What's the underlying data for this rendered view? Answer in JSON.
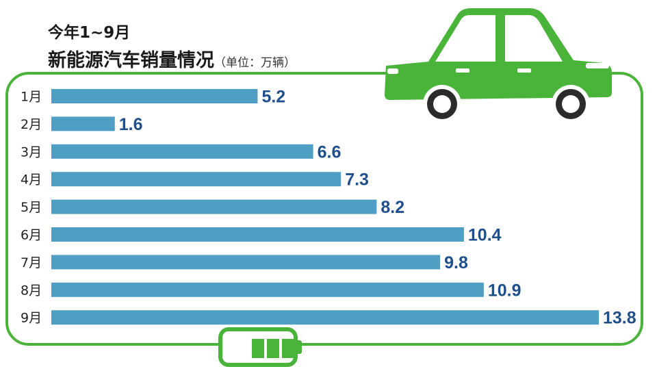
{
  "title": {
    "line1": "今年1~9月",
    "main": "新能源汽车销量情况",
    "unit": "（单位：万辆）"
  },
  "colors": {
    "bar": "#4f9fc4",
    "value_text": "#1f4e8c",
    "frame": "#4ab43a",
    "car": "#4ab43a"
  },
  "icons": [
    "car-icon",
    "battery-icon"
  ],
  "chart_data": {
    "type": "bar",
    "orientation": "horizontal",
    "categories": [
      "1月",
      "2月",
      "3月",
      "4月",
      "5月",
      "6月",
      "7月",
      "8月",
      "9月"
    ],
    "values": [
      5.2,
      1.6,
      6.6,
      7.3,
      8.2,
      10.4,
      9.8,
      10.9,
      13.8
    ],
    "value_labels": [
      "5.2",
      "1.6",
      "6.6",
      "7.3",
      "8.2",
      "10.4",
      "9.8",
      "10.9",
      "13.8"
    ],
    "title": "新能源汽车销量情况",
    "unit": "万辆",
    "xlim": [
      0,
      13.8
    ],
    "grid": false,
    "legend": "none"
  }
}
